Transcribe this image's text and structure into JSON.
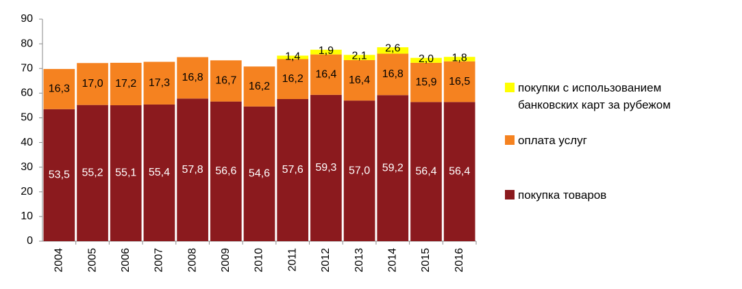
{
  "chart_data": {
    "type": "stacked_bar",
    "categories": [
      "2004",
      "2005",
      "2006",
      "2007",
      "2008",
      "2009",
      "2010",
      "2011",
      "2012",
      "2013",
      "2014",
      "2015",
      "2016"
    ],
    "series": [
      {
        "name": "покупка товаров",
        "color": "#8b1a1e",
        "values": [
          53.5,
          55.2,
          55.1,
          55.4,
          57.8,
          56.6,
          54.6,
          57.6,
          59.3,
          57.0,
          59.2,
          56.4,
          56.4
        ],
        "value_labels": [
          "53,5",
          "55,2",
          "55,1",
          "55,4",
          "57,8",
          "56,6",
          "54,6",
          "57,6",
          "59,3",
          "57,0",
          "59,2",
          "56,4",
          "56,4"
        ]
      },
      {
        "name": "оплата услуг",
        "color": "#f58220",
        "values": [
          16.3,
          17.0,
          17.2,
          17.3,
          16.8,
          16.7,
          16.2,
          16.2,
          16.4,
          16.4,
          16.8,
          15.9,
          16.5
        ],
        "value_labels": [
          "16,3",
          "17,0",
          "17,2",
          "17,3",
          "16,8",
          "16,7",
          "16,2",
          "16,2",
          "16,4",
          "16,4",
          "16,8",
          "15,9",
          "16,5"
        ]
      },
      {
        "name": "покупки с использованием банковских карт за рубежом",
        "color": "#ffff00",
        "values": [
          null,
          null,
          null,
          null,
          null,
          null,
          null,
          1.4,
          1.9,
          2.1,
          2.6,
          2.0,
          1.8
        ],
        "value_labels": [
          null,
          null,
          null,
          null,
          null,
          null,
          null,
          "1,4",
          "1,9",
          "2,1",
          "2,6",
          "2,0",
          "1,8"
        ]
      }
    ],
    "ylim": [
      0,
      90
    ],
    "yticks": [
      0,
      10,
      20,
      30,
      40,
      50,
      60,
      70,
      80,
      90
    ],
    "legend": "right"
  }
}
